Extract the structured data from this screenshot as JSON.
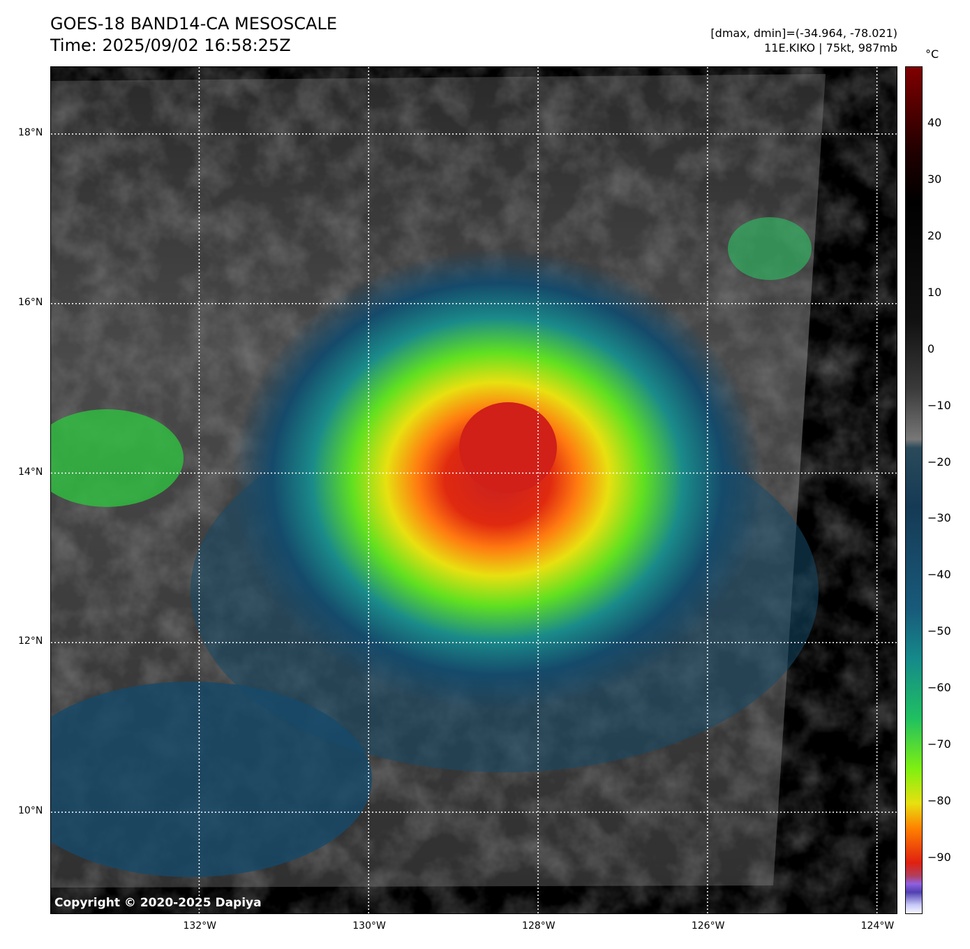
{
  "header": {
    "title": "GOES-18 BAND14-CA MESOSCALE",
    "time": "Time: 2025/09/02 16:58:25Z",
    "dmax_dmin": "[dmax, dmin]=(-34.964, -78.021)",
    "storm": "11E.KIKO | 75kt, 987mb"
  },
  "map": {
    "lon_range": [
      -133.75,
      -123.75
    ],
    "lat_range": [
      8.79,
      18.79
    ],
    "lon_ticks": [
      {
        "v": -132,
        "label": "132°W"
      },
      {
        "v": -130,
        "label": "130°W"
      },
      {
        "v": -128,
        "label": "128°W"
      },
      {
        "v": -126,
        "label": "126°W"
      },
      {
        "v": -124,
        "label": "124°W"
      }
    ],
    "lat_ticks": [
      {
        "v": 18,
        "label": "18°N"
      },
      {
        "v": 16,
        "label": "16°N"
      },
      {
        "v": 14,
        "label": "14°N"
      },
      {
        "v": 12,
        "label": "12°N"
      },
      {
        "v": 10,
        "label": "10°N"
      }
    ],
    "storm_center": {
      "lon": -128.0,
      "lat": 14.05
    }
  },
  "colorbar": {
    "unit": "°C",
    "range": [
      -100,
      50
    ],
    "ticks": [
      40,
      30,
      20,
      10,
      0,
      -10,
      -20,
      -30,
      -40,
      -50,
      -60,
      -70,
      -80,
      -90
    ],
    "tick_labels": [
      "40",
      "30",
      "20",
      "10",
      "0",
      "−10",
      "−20",
      "−30",
      "−40",
      "−50",
      "−60",
      "−70",
      "−80",
      "−90"
    ]
  },
  "copyright": "Copyright © 2020-2025 Dapiya"
}
